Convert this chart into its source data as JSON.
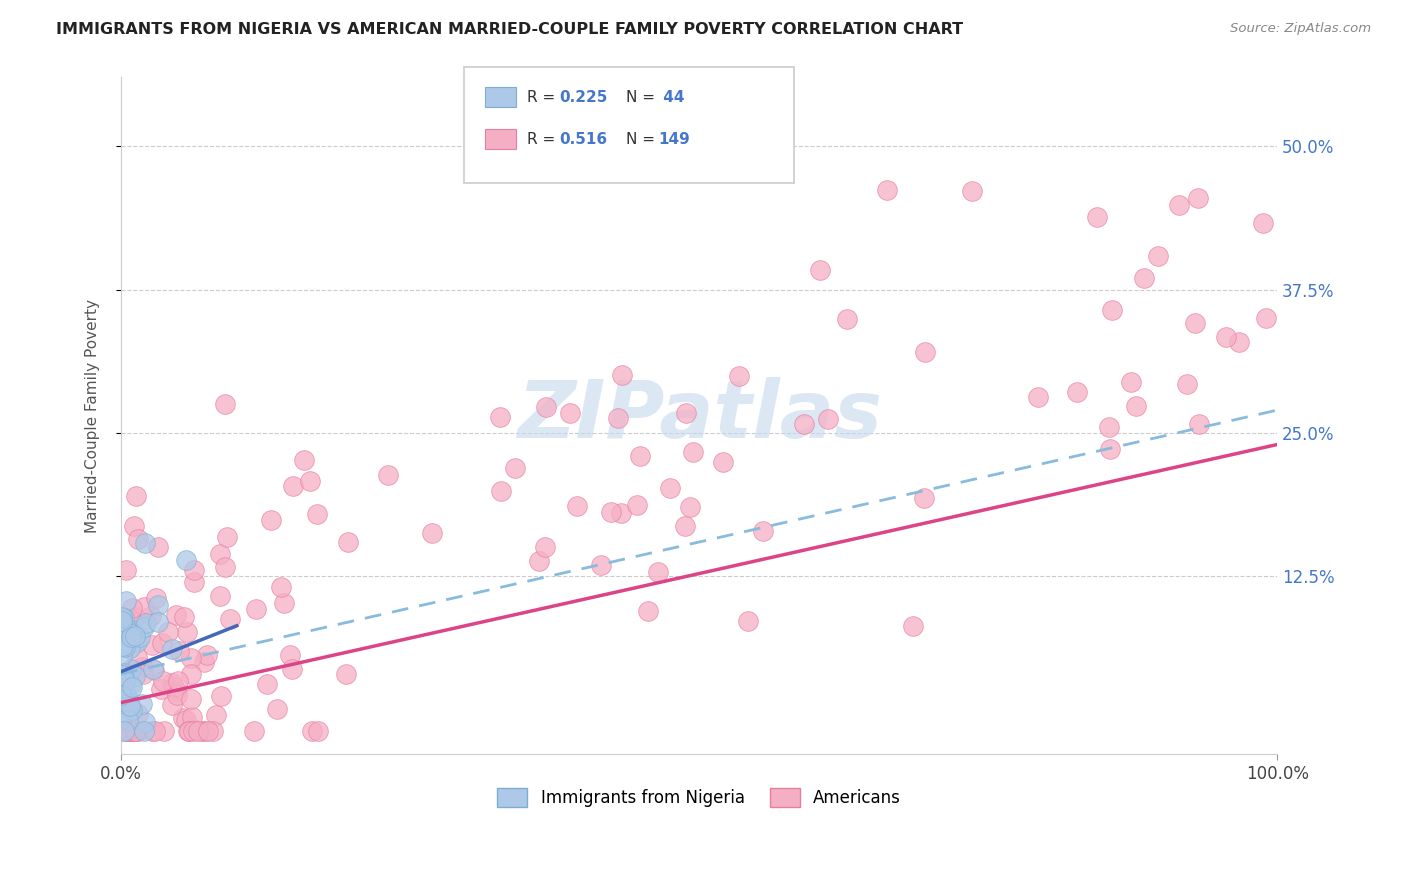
{
  "title": "IMMIGRANTS FROM NIGERIA VS AMERICAN MARRIED-COUPLE FAMILY POVERTY CORRELATION CHART",
  "source": "Source: ZipAtlas.com",
  "ylabel": "Married-Couple Family Poverty",
  "xlim": [
    0,
    1.0
  ],
  "ylim": [
    -0.03,
    0.56
  ],
  "R_nigeria": 0.225,
  "N_nigeria": 44,
  "R_americans": 0.516,
  "N_americans": 149,
  "nigeria_color": "#adc8e8",
  "nigeria_edge": "#7aafd4",
  "americans_color": "#f5afc4",
  "americans_edge": "#e87da0",
  "trend_nigeria_color": "#4466bb",
  "trend_americans_color": "#dd4488",
  "trend_dashed_color": "#88bbdd",
  "watermark_color": "#c5d8ee",
  "background_color": "#ffffff",
  "legend_labels": [
    "Immigrants from Nigeria",
    "Americans"
  ],
  "ytick_vals": [
    0.125,
    0.25,
    0.375,
    0.5
  ],
  "ytick_labels": [
    "12.5%",
    "25.0%",
    "37.5%",
    "50.0%"
  ]
}
